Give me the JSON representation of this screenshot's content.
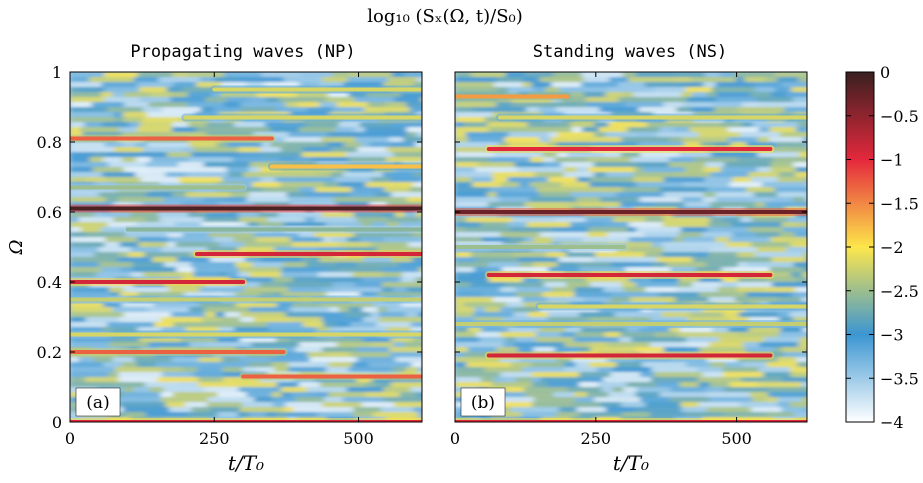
{
  "figure": {
    "main_title": "log₁₀ (Sₓ(Ω, t)/S₀)"
  },
  "chart_data": [
    {
      "type": "heatmap",
      "panel_label": "(a)",
      "title": "Propagating waves (NP)",
      "xlabel": "t/T₀",
      "ylabel": "Ω",
      "xlim": [
        0,
        610
      ],
      "ylim": [
        0,
        1
      ],
      "xticks": [
        0,
        250,
        500
      ],
      "yticks": [
        0,
        0.2,
        0.4,
        0.6,
        0.8,
        1
      ],
      "ytick_labels": [
        "0",
        "0.2",
        "0.4",
        "0.6",
        "0.8",
        "1"
      ],
      "value_range": [
        -4,
        0
      ],
      "ridges": [
        {
          "omega": 0.61,
          "t_start": 0,
          "t_end": 610,
          "peak_value": -0.1
        },
        {
          "omega": 0.81,
          "t_start": 0,
          "t_end": 350,
          "peak_value": -1.3
        },
        {
          "omega": 0.73,
          "t_start": 350,
          "t_end": 610,
          "peak_value": -1.8
        },
        {
          "omega": 0.4,
          "t_start": 0,
          "t_end": 300,
          "peak_value": -0.9
        },
        {
          "omega": 0.48,
          "t_start": 220,
          "t_end": 610,
          "peak_value": -0.9
        },
        {
          "omega": 0.2,
          "t_start": 0,
          "t_end": 370,
          "peak_value": -1.3
        },
        {
          "omega": 0.13,
          "t_start": 300,
          "t_end": 610,
          "peak_value": -1.3
        },
        {
          "omega": 0.87,
          "t_start": 200,
          "t_end": 610,
          "peak_value": -2.2
        },
        {
          "omega": 0.35,
          "t_start": 0,
          "t_end": 610,
          "peak_value": -2.3
        },
        {
          "omega": 0.25,
          "t_start": 0,
          "t_end": 610,
          "peak_value": -2.2
        },
        {
          "omega": 0.95,
          "t_start": 250,
          "t_end": 610,
          "peak_value": -2.2
        },
        {
          "omega": 0.67,
          "t_start": 0,
          "t_end": 300,
          "peak_value": -2.5
        },
        {
          "omega": 0.55,
          "t_start": 100,
          "t_end": 610,
          "peak_value": -2.6
        },
        {
          "omega": 0.0,
          "t_start": 0,
          "t_end": 610,
          "peak_value": -1.0
        }
      ]
    },
    {
      "type": "heatmap",
      "panel_label": "(b)",
      "title": "Standing waves (NS)",
      "xlabel": "t/T₀",
      "ylabel": "",
      "xlim": [
        0,
        625
      ],
      "ylim": [
        0,
        1
      ],
      "xticks": [
        0,
        250,
        500
      ],
      "yticks": [
        0,
        0.2,
        0.4,
        0.6,
        0.8,
        1
      ],
      "value_range": [
        -4,
        0
      ],
      "ridges": [
        {
          "omega": 0.6,
          "t_start": 0,
          "t_end": 625,
          "peak_value": -0.3
        },
        {
          "omega": 0.78,
          "t_start": 60,
          "t_end": 560,
          "peak_value": -1.0
        },
        {
          "omega": 0.42,
          "t_start": 60,
          "t_end": 560,
          "peak_value": -0.9
        },
        {
          "omega": 0.19,
          "t_start": 60,
          "t_end": 560,
          "peak_value": -0.9
        },
        {
          "omega": 0.87,
          "t_start": 80,
          "t_end": 625,
          "peak_value": -2.2
        },
        {
          "omega": 0.33,
          "t_start": 150,
          "t_end": 625,
          "peak_value": -2.2
        },
        {
          "omega": 0.28,
          "t_start": 0,
          "t_end": 625,
          "peak_value": -2.3
        },
        {
          "omega": 0.93,
          "t_start": 0,
          "t_end": 200,
          "peak_value": -1.6
        },
        {
          "omega": 0.5,
          "t_start": 0,
          "t_end": 300,
          "peak_value": -2.5
        },
        {
          "omega": 0.0,
          "t_start": 0,
          "t_end": 625,
          "peak_value": -1.0
        }
      ]
    }
  ],
  "colorbar": {
    "min": -4,
    "max": 0,
    "ticks": [
      0,
      -0.5,
      -1,
      -1.5,
      -2,
      -2.5,
      -3,
      -3.5,
      -4
    ],
    "tick_labels": [
      "0",
      "−0.5",
      "−1",
      "−1.5",
      "−2",
      "−2.5",
      "−3",
      "−3.5",
      "−4"
    ],
    "colormap": [
      "#ffffff",
      "#3c96d2",
      "#fde64b",
      "#e4283c",
      "#3a2020"
    ]
  }
}
